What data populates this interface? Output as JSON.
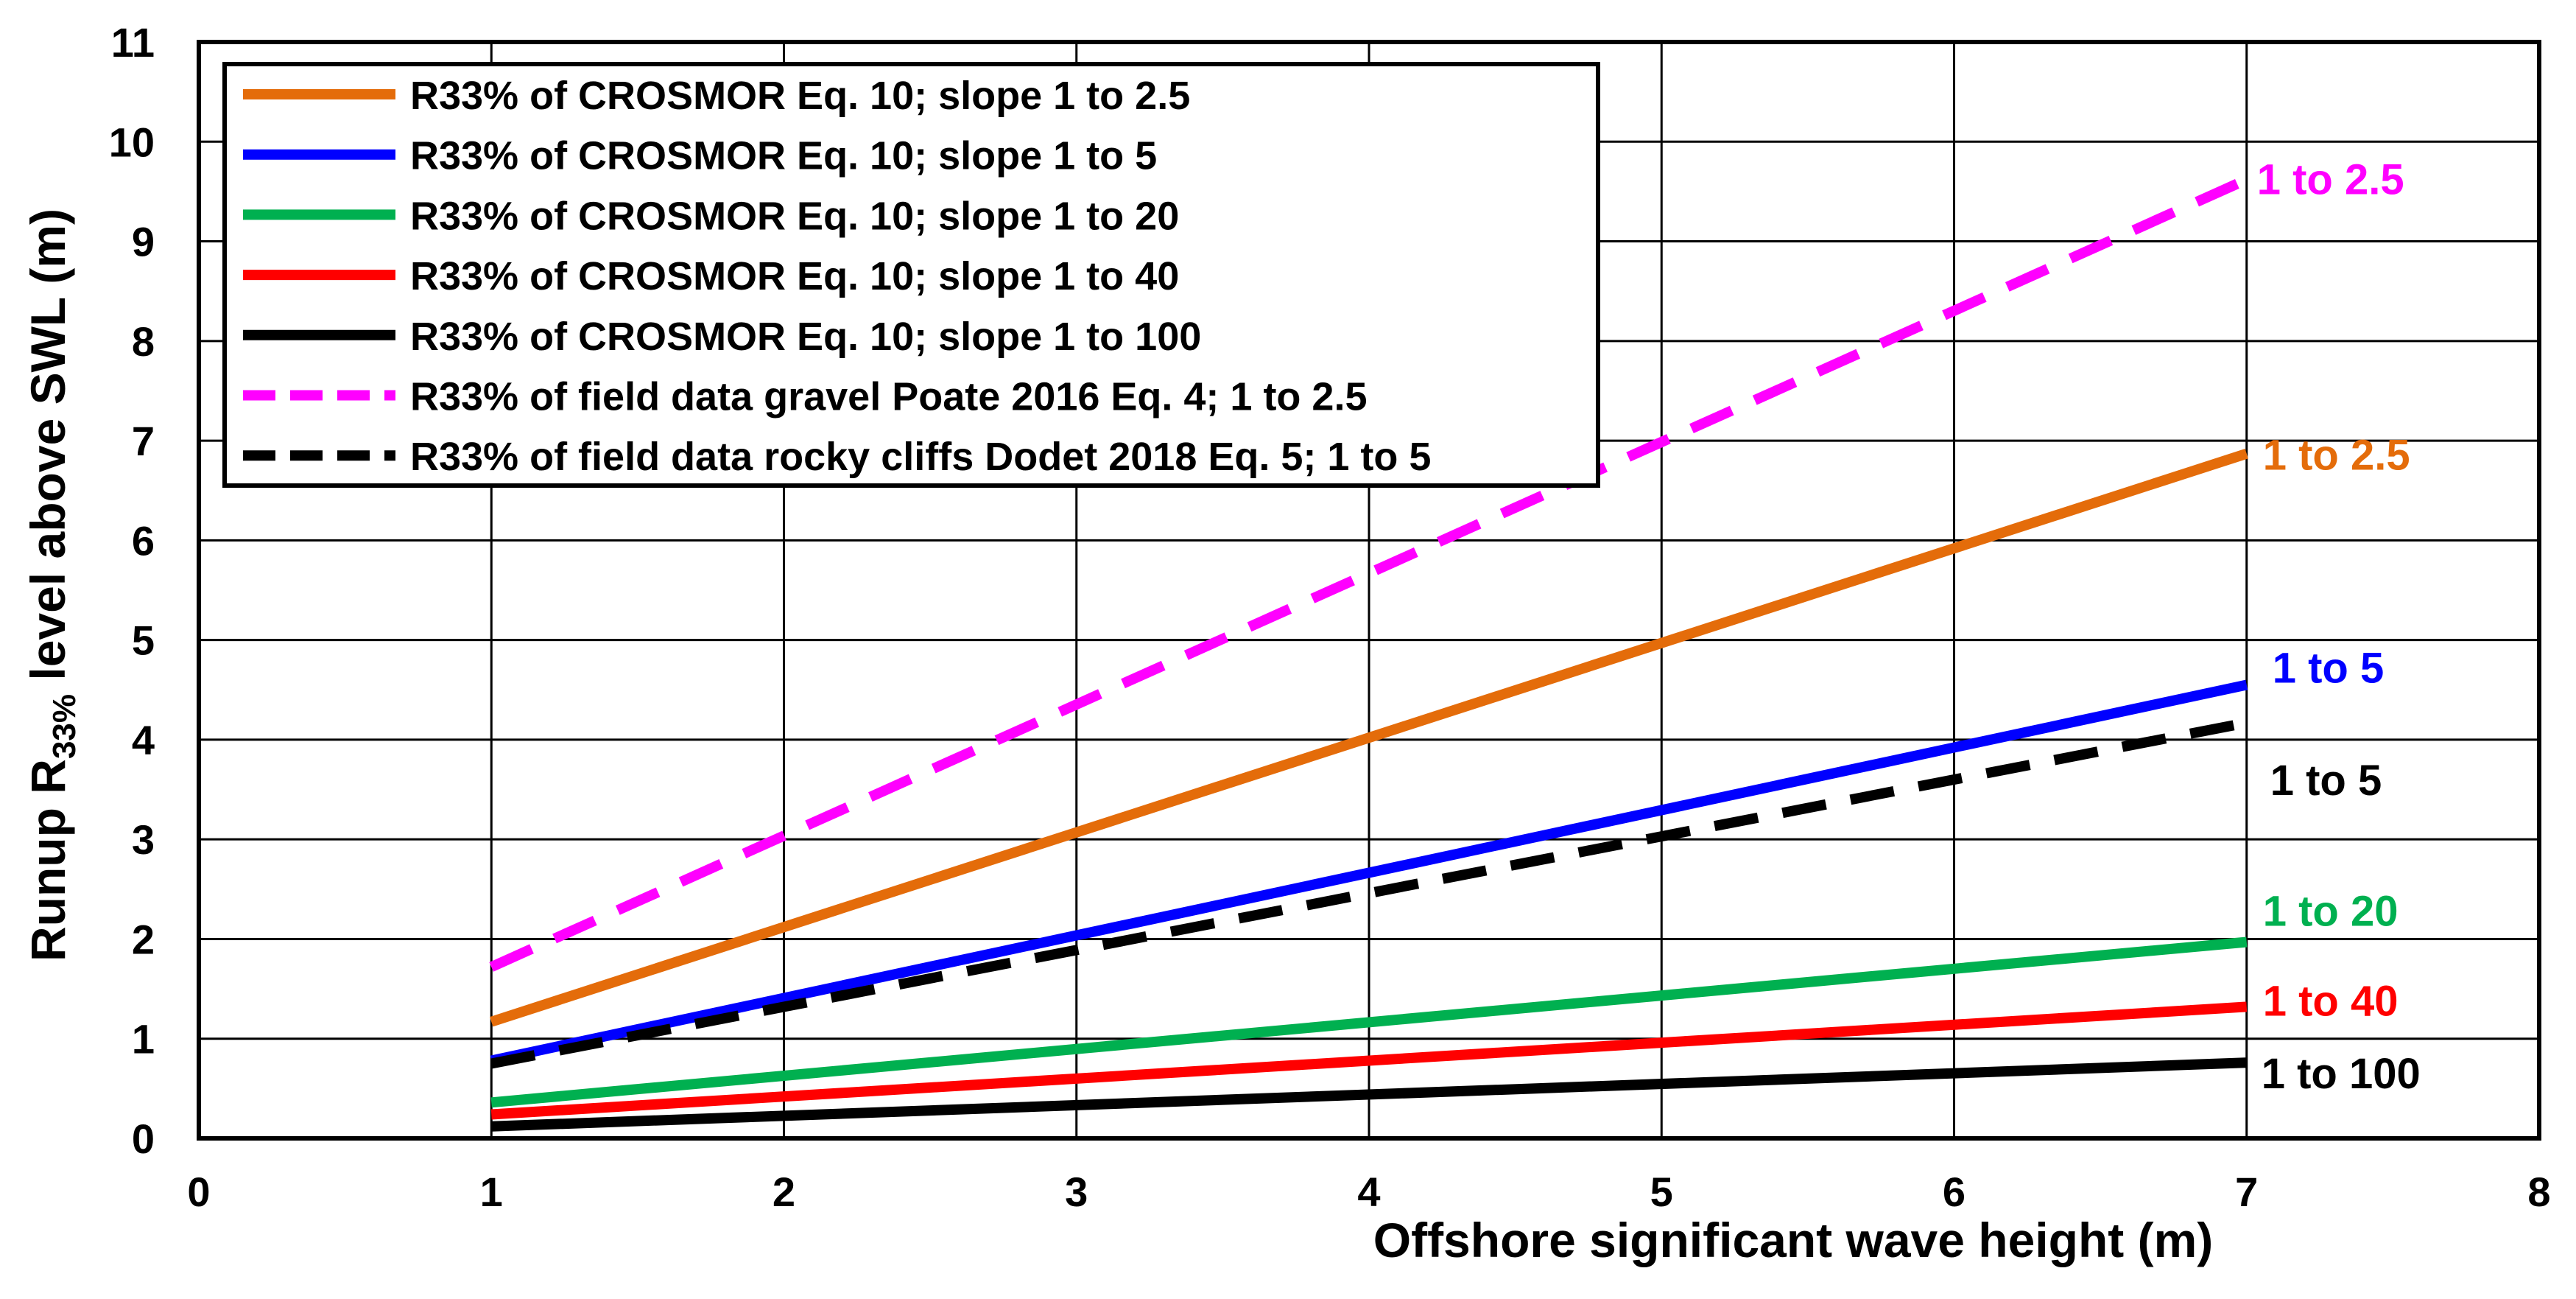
{
  "chart_data": {
    "type": "line",
    "title": "",
    "xlabel": "Offshore significant wave height (m)",
    "ylabel": {
      "prefix": "Runup R",
      "subscript": "33%",
      "suffix": " level above SWL (m)"
    },
    "xlim": [
      0,
      8
    ],
    "ylim": [
      0,
      11
    ],
    "xticks": [
      "0",
      "1",
      "2",
      "3",
      "4",
      "5",
      "6",
      "7",
      "8"
    ],
    "yticks": [
      "0",
      "1",
      "2",
      "3",
      "4",
      "5",
      "6",
      "7",
      "8",
      "9",
      "10",
      "11"
    ],
    "grid": true,
    "legend_position": "top-left",
    "series": [
      {
        "name": "R33% of CROSMOR Eq. 10; slope 1 to 2.5",
        "color": "#E46C0A",
        "style": "solid",
        "x": [
          1,
          7
        ],
        "y": [
          1.17,
          6.87
        ],
        "end_label": "1 to 2.5"
      },
      {
        "name": "R33% of CROSMOR Eq. 10; slope 1 to 5",
        "color": "#0000FF",
        "style": "solid",
        "x": [
          1,
          7
        ],
        "y": [
          0.78,
          4.55
        ],
        "end_label": "1 to 5"
      },
      {
        "name": "R33% of CROSMOR Eq. 10; slope 1 to 20",
        "color": "#00B050",
        "style": "solid",
        "x": [
          1,
          7
        ],
        "y": [
          0.36,
          1.97
        ],
        "end_label": "1 to 20"
      },
      {
        "name": "R33% of CROSMOR Eq. 10; slope 1 to 40",
        "color": "#FF0000",
        "style": "solid",
        "x": [
          1,
          7
        ],
        "y": [
          0.24,
          1.32
        ],
        "end_label": "1 to 40"
      },
      {
        "name": "R33% of CROSMOR Eq. 10; slope 1 to 100",
        "color": "#000000",
        "style": "solid",
        "x": [
          1,
          7
        ],
        "y": [
          0.12,
          0.76
        ],
        "end_label": "1 to 100"
      },
      {
        "name": "R33% of field data gravel Poate 2016 Eq. 4; 1 to 2.5",
        "color": "#FF00FF",
        "style": "dashed",
        "x": [
          1,
          7
        ],
        "y": [
          1.72,
          9.62
        ],
        "end_label": "1 to 2.5"
      },
      {
        "name": "R33% of field data rocky cliffs Dodet 2018 Eq. 5; 1 to 5",
        "color": "#000000",
        "style": "dashed",
        "x": [
          1,
          7
        ],
        "y": [
          0.75,
          4.17
        ],
        "end_label": "1 to 5"
      }
    ]
  }
}
